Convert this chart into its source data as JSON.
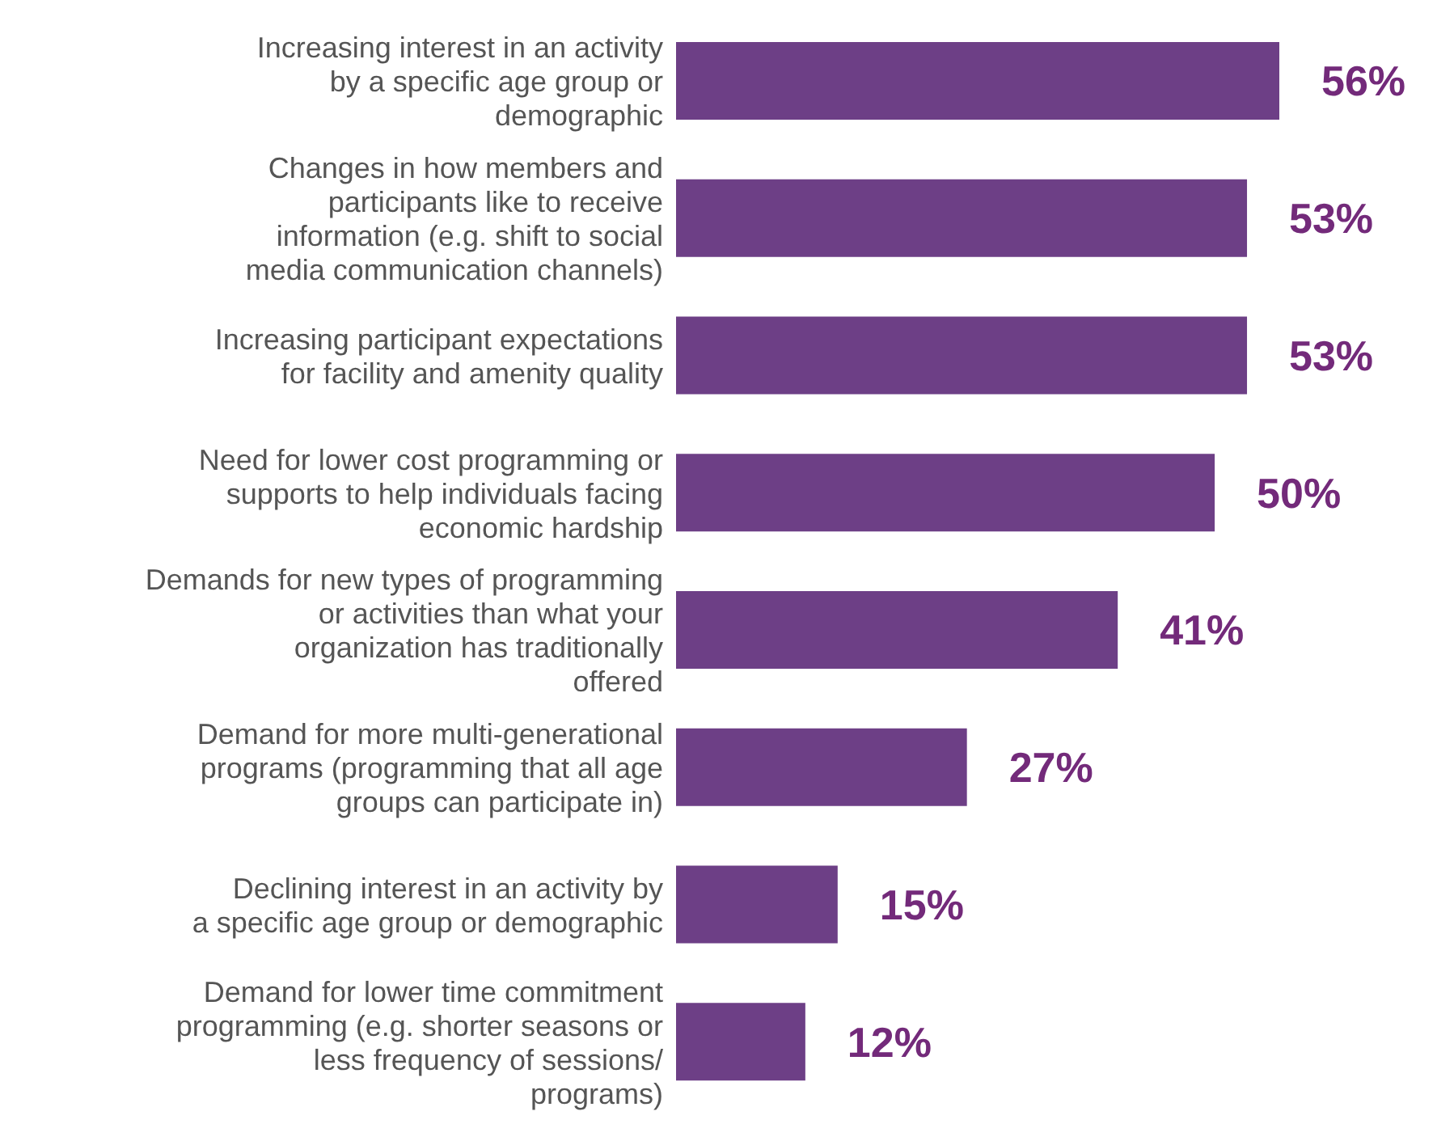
{
  "chart_data": {
    "type": "bar",
    "orientation": "horizontal",
    "categories": [
      "Increasing interest in an activity by a specific age group or demographic",
      "Changes in how members and participants like to receive information (e.g. shift to social media communication channels)",
      "Increasing participant expectations for facility and amenity quality",
      "Need for lower cost programming or supports to help individuals facing economic hardship",
      "Demands for new types of programming or activities than what your organization has traditionally offered",
      "Demand for more multi-generational programs (programming that all age groups can participate in)",
      "Declining interest in an activity by a specific age group or demographic",
      "Demand for lower time commitment programming (e.g. shorter seasons or less frequency of sessions/ programs)"
    ],
    "values": [
      56,
      53,
      53,
      50,
      41,
      27,
      15,
      12
    ],
    "value_labels": [
      "56%",
      "53%",
      "53%",
      "50%",
      "41%",
      "27%",
      "15%",
      "12%"
    ],
    "color": "#6d3f86",
    "grid": false,
    "legend": false
  }
}
